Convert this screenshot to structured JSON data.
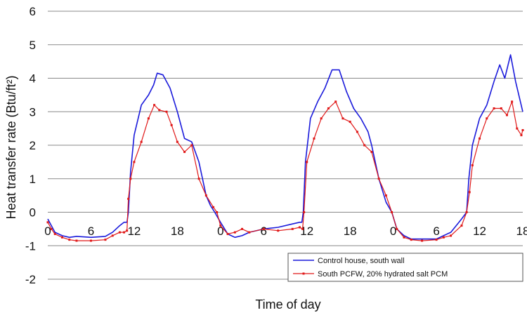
{
  "chart_data": {
    "type": "line",
    "xlabel": "Time of day",
    "ylabel": "Heat transfer rate (Btu/ft²)",
    "ylim": [
      -2,
      6
    ],
    "yticks": [
      -2,
      -1,
      0,
      1,
      2,
      3,
      4,
      5,
      6
    ],
    "xlim": [
      0,
      66
    ],
    "xticks": [
      {
        "x": 0,
        "label": "0"
      },
      {
        "x": 6,
        "label": "6"
      },
      {
        "x": 12,
        "label": "12"
      },
      {
        "x": 18,
        "label": "18"
      },
      {
        "x": 24,
        "label": "0"
      },
      {
        "x": 30,
        "label": "6"
      },
      {
        "x": 36,
        "label": "12"
      },
      {
        "x": 42,
        "label": "18"
      },
      {
        "x": 48,
        "label": "0"
      },
      {
        "x": 54,
        "label": "6"
      },
      {
        "x": 60,
        "label": "12"
      },
      {
        "x": 66,
        "label": "18"
      }
    ],
    "grid": "horizontal",
    "legend_position": "bottom-right",
    "series": [
      {
        "name": "Control house, south wall",
        "color": "#1a1adb",
        "points": [
          [
            0,
            -0.2
          ],
          [
            0.5,
            -0.4
          ],
          [
            1,
            -0.6
          ],
          [
            2,
            -0.7
          ],
          [
            3,
            -0.75
          ],
          [
            4,
            -0.72
          ],
          [
            6,
            -0.75
          ],
          [
            8,
            -0.72
          ],
          [
            9,
            -0.6
          ],
          [
            10,
            -0.4
          ],
          [
            10.6,
            -0.3
          ],
          [
            11,
            -0.3
          ],
          [
            11.2,
            0
          ],
          [
            11.5,
            1.2
          ],
          [
            12,
            2.3
          ],
          [
            13,
            3.2
          ],
          [
            14,
            3.5
          ],
          [
            14.7,
            3.8
          ],
          [
            15.2,
            4.15
          ],
          [
            16,
            4.1
          ],
          [
            17,
            3.7
          ],
          [
            18,
            3.0
          ],
          [
            19,
            2.2
          ],
          [
            20,
            2.1
          ],
          [
            21,
            1.5
          ],
          [
            22,
            0.5
          ],
          [
            22.6,
            0.2
          ],
          [
            23.2,
            0.0
          ],
          [
            24,
            -0.3
          ],
          [
            25,
            -0.65
          ],
          [
            26,
            -0.75
          ],
          [
            27,
            -0.7
          ],
          [
            28,
            -0.6
          ],
          [
            30,
            -0.5
          ],
          [
            32,
            -0.45
          ],
          [
            34,
            -0.35
          ],
          [
            35,
            -0.3
          ],
          [
            35.3,
            -0.3
          ],
          [
            35.5,
            0
          ],
          [
            35.8,
            1.5
          ],
          [
            36.5,
            2.8
          ],
          [
            37.5,
            3.3
          ],
          [
            38.5,
            3.7
          ],
          [
            39.5,
            4.25
          ],
          [
            40.5,
            4.25
          ],
          [
            41.5,
            3.6
          ],
          [
            42.5,
            3.1
          ],
          [
            43.5,
            2.8
          ],
          [
            44.5,
            2.4
          ],
          [
            45,
            2.0
          ],
          [
            46,
            1.0
          ],
          [
            47,
            0.3
          ],
          [
            47.8,
            0.0
          ],
          [
            48.5,
            -0.5
          ],
          [
            49.5,
            -0.7
          ],
          [
            50.5,
            -0.8
          ],
          [
            52,
            -0.8
          ],
          [
            54,
            -0.8
          ],
          [
            55,
            -0.7
          ],
          [
            56,
            -0.6
          ],
          [
            57.5,
            -0.2
          ],
          [
            58.2,
            0
          ],
          [
            58.5,
            1.0
          ],
          [
            59,
            2.0
          ],
          [
            60,
            2.8
          ],
          [
            61,
            3.2
          ],
          [
            62,
            3.9
          ],
          [
            62.8,
            4.4
          ],
          [
            63.5,
            4.0
          ],
          [
            64.3,
            4.7
          ],
          [
            65,
            3.9
          ],
          [
            66,
            3.0
          ]
        ]
      },
      {
        "name": "South PCFW, 20% hydrated salt PCM",
        "color": "#e01818",
        "points": [
          [
            0,
            -0.3
          ],
          [
            0.5,
            -0.5
          ],
          [
            1,
            -0.65
          ],
          [
            2,
            -0.75
          ],
          [
            3,
            -0.82
          ],
          [
            4,
            -0.85
          ],
          [
            6,
            -0.85
          ],
          [
            8,
            -0.82
          ],
          [
            9,
            -0.7
          ],
          [
            10,
            -0.6
          ],
          [
            10.6,
            -0.6
          ],
          [
            11,
            -0.55
          ],
          [
            11.2,
            0.4
          ],
          [
            11.5,
            1.0
          ],
          [
            12,
            1.5
          ],
          [
            13,
            2.1
          ],
          [
            14,
            2.8
          ],
          [
            14.8,
            3.2
          ],
          [
            15.5,
            3.05
          ],
          [
            16.5,
            3.0
          ],
          [
            17.2,
            2.6
          ],
          [
            18,
            2.1
          ],
          [
            19,
            1.8
          ],
          [
            20,
            2.0
          ],
          [
            21,
            1.0
          ],
          [
            22,
            0.5
          ],
          [
            23,
            0.15
          ],
          [
            23.5,
            0.0
          ],
          [
            24,
            -0.4
          ],
          [
            25,
            -0.65
          ],
          [
            26,
            -0.6
          ],
          [
            27,
            -0.5
          ],
          [
            28,
            -0.6
          ],
          [
            30,
            -0.5
          ],
          [
            32,
            -0.55
          ],
          [
            34,
            -0.5
          ],
          [
            35,
            -0.45
          ],
          [
            35.4,
            -0.5
          ],
          [
            35.6,
            0
          ],
          [
            36,
            1.5
          ],
          [
            37,
            2.2
          ],
          [
            38,
            2.8
          ],
          [
            39,
            3.1
          ],
          [
            40,
            3.3
          ],
          [
            41,
            2.8
          ],
          [
            42,
            2.7
          ],
          [
            43,
            2.4
          ],
          [
            44,
            2.0
          ],
          [
            45,
            1.8
          ],
          [
            46,
            1.0
          ],
          [
            47,
            0.5
          ],
          [
            47.8,
            0.0
          ],
          [
            48.5,
            -0.5
          ],
          [
            49.5,
            -0.75
          ],
          [
            50.5,
            -0.82
          ],
          [
            52,
            -0.85
          ],
          [
            54,
            -0.82
          ],
          [
            55,
            -0.75
          ],
          [
            56,
            -0.7
          ],
          [
            57.5,
            -0.4
          ],
          [
            58.2,
            0
          ],
          [
            58.6,
            0.6
          ],
          [
            59,
            1.4
          ],
          [
            60,
            2.2
          ],
          [
            61,
            2.8
          ],
          [
            62,
            3.1
          ],
          [
            63,
            3.1
          ],
          [
            63.8,
            2.9
          ],
          [
            64.5,
            3.3
          ],
          [
            65.2,
            2.5
          ],
          [
            65.8,
            2.3
          ],
          [
            66,
            2.45
          ]
        ]
      }
    ]
  }
}
